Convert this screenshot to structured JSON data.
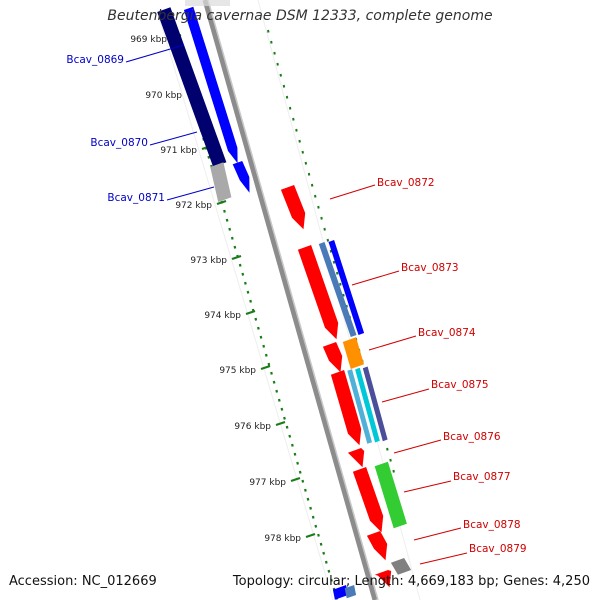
{
  "title": "Beutenbergia cavernae DSM 12333, complete genome",
  "footer": {
    "accession": "Accession: NC_012669",
    "summary": "Topology: circular; Length: 4,669,183 bp; Genes: 4,250"
  },
  "colors": {
    "backbone": "#8c8c8c",
    "ruler": "#1a7d1a",
    "forward_label": "#0000c8",
    "reverse_label": "#d00000",
    "gene_red": "#ff0000",
    "gene_blue": "#0000ff",
    "gene_navy": "#00006e",
    "gene_gray": "#a9a9a9",
    "gene_orange": "#ff9000",
    "gene_green": "#33cc33",
    "gene_cyan": "#00c8d8",
    "gene_steel": "#4a7ab8"
  },
  "ruler": {
    "ticks": [
      "969 kbp",
      "970 kbp",
      "971 kbp",
      "972 kbp",
      "973 kbp",
      "974 kbp",
      "975 kbp",
      "976 kbp",
      "977 kbp",
      "978 kbp"
    ]
  },
  "genes": [
    {
      "label": "Bcav_0869",
      "strand": "forward"
    },
    {
      "label": "Bcav_0870",
      "strand": "forward"
    },
    {
      "label": "Bcav_0871",
      "strand": "forward"
    },
    {
      "label": "Bcav_0872",
      "strand": "reverse"
    },
    {
      "label": "Bcav_0873",
      "strand": "reverse"
    },
    {
      "label": "Bcav_0874",
      "strand": "reverse"
    },
    {
      "label": "Bcav_0875",
      "strand": "reverse"
    },
    {
      "label": "Bcav_0876",
      "strand": "reverse"
    },
    {
      "label": "Bcav_0877",
      "strand": "reverse"
    },
    {
      "label": "Bcav_0878",
      "strand": "reverse"
    },
    {
      "label": "Bcav_0879",
      "strand": "reverse"
    }
  ]
}
